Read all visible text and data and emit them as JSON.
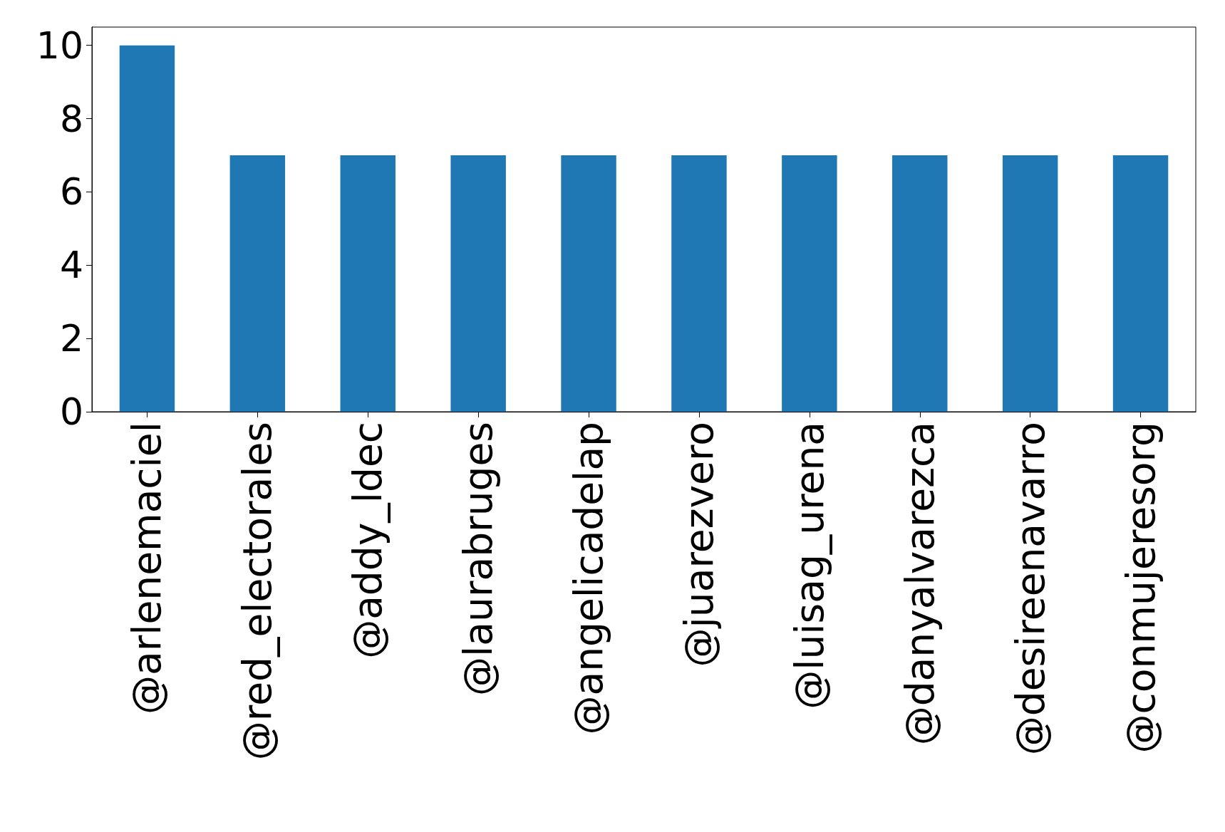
{
  "chart_data": {
    "type": "bar",
    "categories": [
      "@arlenemaciel",
      "@red_electorales",
      "@addy_ldec",
      "@laurabruges",
      "@angelicadelap",
      "@juarezvero",
      "@luisag_urena",
      "@danyalvarezca",
      "@desireenavarro",
      "@conmujeresorg"
    ],
    "values": [
      10,
      7,
      7,
      7,
      7,
      7,
      7,
      7,
      7,
      7
    ],
    "color": "#1f77b4",
    "ylim": [
      0,
      10.5
    ],
    "yticks": [
      0,
      2,
      4,
      6,
      8,
      10
    ]
  }
}
